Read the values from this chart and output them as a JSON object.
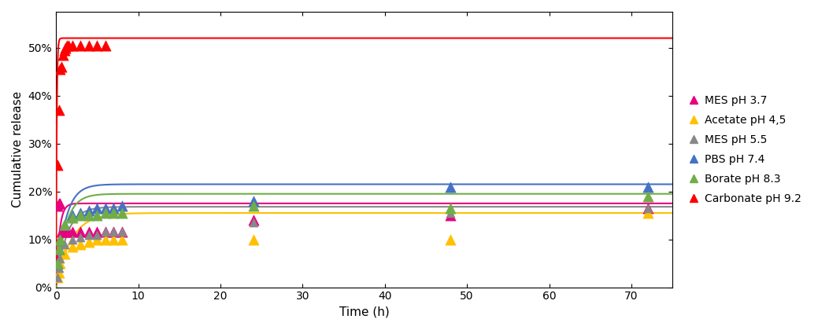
{
  "series": [
    {
      "label": "MES pH 3.7",
      "color": "#e8007f",
      "scatter_points": [
        [
          0.17,
          0.17
        ],
        [
          0.33,
          0.175
        ],
        [
          0.5,
          0.175
        ],
        [
          0.67,
          0.115
        ],
        [
          1.0,
          0.115
        ],
        [
          1.5,
          0.115
        ],
        [
          2.0,
          0.115
        ],
        [
          3.0,
          0.115
        ],
        [
          4.0,
          0.115
        ],
        [
          5.0,
          0.115
        ],
        [
          6.0,
          0.115
        ],
        [
          7.0,
          0.115
        ],
        [
          8.0,
          0.115
        ],
        [
          24,
          0.14
        ],
        [
          48,
          0.15
        ],
        [
          72,
          0.165
        ]
      ],
      "curve_params": {
        "Amax": 0.175,
        "k": 2.5
      },
      "marker": "^",
      "markersize": 6
    },
    {
      "label": "Acetate pH 4,5",
      "color": "#ffc000",
      "scatter_points": [
        [
          0.17,
          0.02
        ],
        [
          0.33,
          0.03
        ],
        [
          0.5,
          0.05
        ],
        [
          1.0,
          0.07
        ],
        [
          2.0,
          0.085
        ],
        [
          3.0,
          0.09
        ],
        [
          4.0,
          0.095
        ],
        [
          5.0,
          0.1
        ],
        [
          6.0,
          0.1
        ],
        [
          7.0,
          0.1
        ],
        [
          8.0,
          0.1
        ],
        [
          24,
          0.1
        ],
        [
          48,
          0.1
        ],
        [
          72,
          0.155
        ]
      ],
      "curve_params": {
        "Amax": 0.155,
        "k": 0.55
      },
      "marker": "^",
      "markersize": 6
    },
    {
      "label": "MES pH 5.5",
      "color": "#888888",
      "scatter_points": [
        [
          0.17,
          0.02
        ],
        [
          0.33,
          0.04
        ],
        [
          0.5,
          0.06
        ],
        [
          1.0,
          0.09
        ],
        [
          2.0,
          0.1
        ],
        [
          3.0,
          0.105
        ],
        [
          4.0,
          0.11
        ],
        [
          5.0,
          0.11
        ],
        [
          6.0,
          0.115
        ],
        [
          7.0,
          0.115
        ],
        [
          8.0,
          0.115
        ],
        [
          24,
          0.135
        ],
        [
          48,
          0.155
        ],
        [
          72,
          0.165
        ]
      ],
      "curve_params": {
        "Amax": 0.168,
        "k": 0.8
      },
      "marker": "^",
      "markersize": 5
    },
    {
      "label": "PBS pH 7.4",
      "color": "#4472c4",
      "scatter_points": [
        [
          0.17,
          0.05
        ],
        [
          0.33,
          0.08
        ],
        [
          0.5,
          0.1
        ],
        [
          1.0,
          0.13
        ],
        [
          2.0,
          0.15
        ],
        [
          3.0,
          0.155
        ],
        [
          4.0,
          0.16
        ],
        [
          5.0,
          0.165
        ],
        [
          6.0,
          0.165
        ],
        [
          7.0,
          0.165
        ],
        [
          8.0,
          0.17
        ],
        [
          24,
          0.18
        ],
        [
          48,
          0.21
        ],
        [
          72,
          0.21
        ]
      ],
      "curve_params": {
        "Amax": 0.215,
        "k": 0.9
      },
      "marker": "^",
      "markersize": 6
    },
    {
      "label": "Borate pH 8.3",
      "color": "#70ad47",
      "scatter_points": [
        [
          0.17,
          0.05
        ],
        [
          0.33,
          0.08
        ],
        [
          0.5,
          0.1
        ],
        [
          1.0,
          0.13
        ],
        [
          2.0,
          0.145
        ],
        [
          3.0,
          0.15
        ],
        [
          4.0,
          0.15
        ],
        [
          5.0,
          0.15
        ],
        [
          6.0,
          0.155
        ],
        [
          7.0,
          0.155
        ],
        [
          8.0,
          0.155
        ],
        [
          24,
          0.17
        ],
        [
          48,
          0.165
        ],
        [
          72,
          0.19
        ]
      ],
      "curve_params": {
        "Amax": 0.195,
        "k": 0.9
      },
      "marker": "^",
      "markersize": 6
    },
    {
      "label": "Carbonate pH 9.2",
      "color": "#ff0000",
      "scatter_points": [
        [
          0.17,
          0.255
        ],
        [
          0.33,
          0.37
        ],
        [
          0.5,
          0.455
        ],
        [
          0.67,
          0.46
        ],
        [
          0.83,
          0.485
        ],
        [
          1.0,
          0.495
        ],
        [
          1.17,
          0.5
        ],
        [
          1.33,
          0.505
        ],
        [
          1.5,
          0.505
        ],
        [
          2.0,
          0.505
        ],
        [
          3.0,
          0.505
        ],
        [
          4.0,
          0.505
        ],
        [
          5.0,
          0.505
        ],
        [
          6.0,
          0.505
        ]
      ],
      "curve_params": {
        "Amax": 0.52,
        "k": 12.0
      },
      "marker": "^",
      "markersize": 6
    }
  ],
  "xlim": [
    0,
    75
  ],
  "ylim": [
    0,
    0.575
  ],
  "yticks": [
    0,
    0.1,
    0.2,
    0.3,
    0.4,
    0.5
  ],
  "ytick_labels": [
    "0%",
    "10%",
    "20%",
    "30%",
    "40%",
    "50%"
  ],
  "xticks": [
    0,
    10,
    20,
    30,
    40,
    50,
    60,
    70
  ],
  "xlabel": "Time (h)",
  "ylabel": "Cumulative release",
  "legend_fontsize": 10,
  "axis_fontsize": 11,
  "tick_fontsize": 10,
  "background_color": "#ffffff",
  "figsize": [
    10.39,
    4.2
  ],
  "dpi": 100
}
